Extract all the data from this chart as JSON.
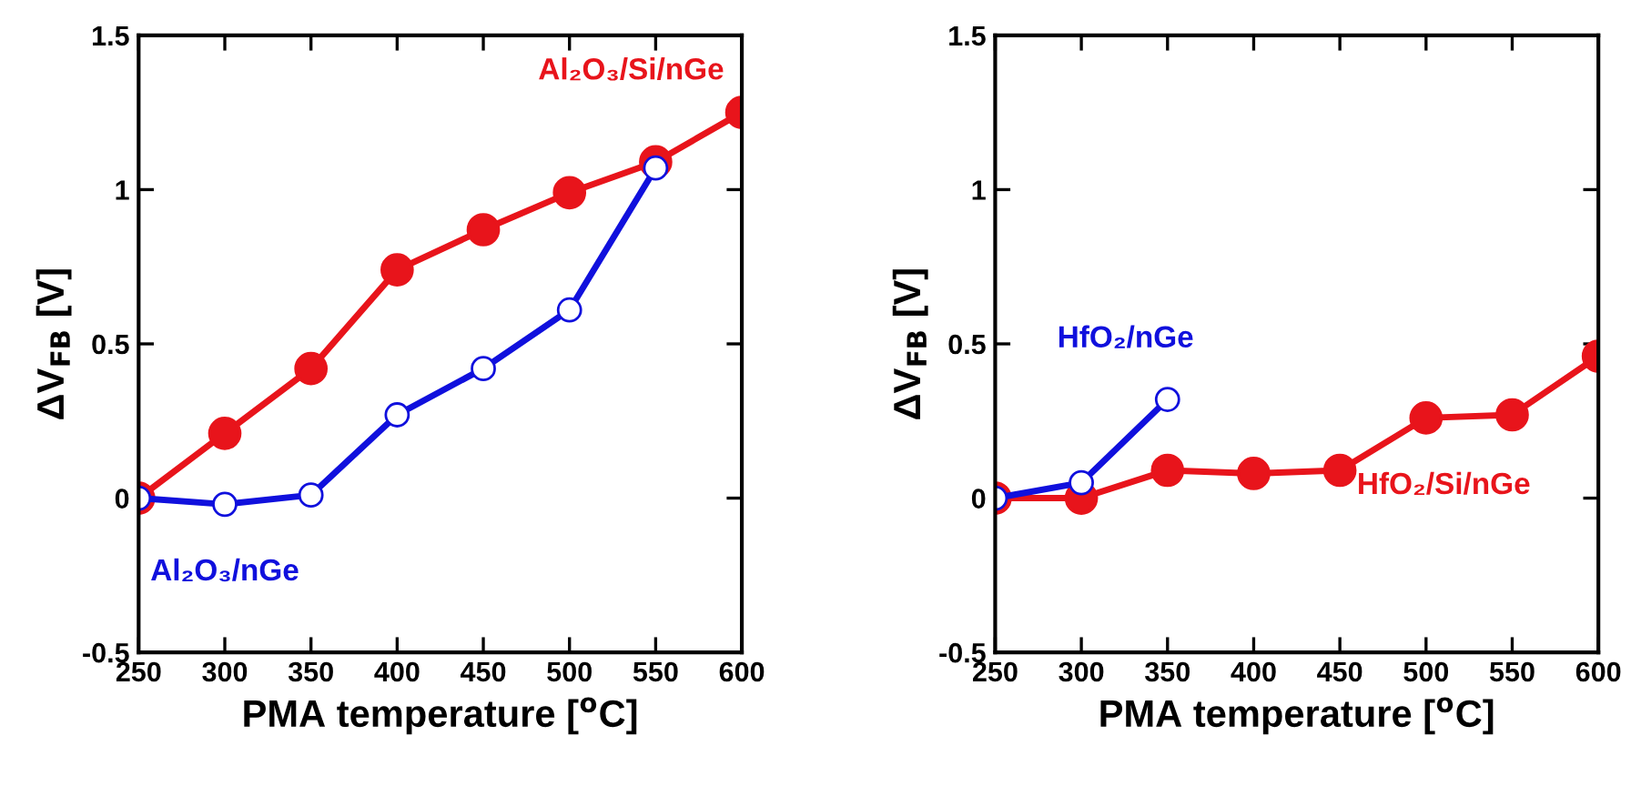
{
  "chart_data": [
    {
      "type": "line",
      "xlabel": "PMA temperature [$^{o}$C]",
      "ylabel": "ΔV$_{FB}$ [V]",
      "x": [
        250,
        300,
        350,
        400,
        450,
        500,
        550,
        600
      ],
      "xlim": [
        250,
        600
      ],
      "ylim": [
        -0.5,
        1.5
      ],
      "xticks": [
        250,
        300,
        350,
        400,
        450,
        500,
        550,
        600
      ],
      "yticks": [
        {
          "value": -0.5,
          "label": "-0.5"
        },
        0,
        0.5,
        1,
        1.5
      ],
      "marker": "circle",
      "grid": false,
      "legend": false,
      "series": [
        {
          "name": "Al₂O₃/Si/nGe",
          "color": "#e8141b",
          "values": [
            0,
            0.21,
            0.42,
            0.74,
            0.87,
            0.99,
            1.09,
            1.25
          ]
        },
        {
          "name": "Al₂O₃/nGe",
          "color": "#1010dd",
          "values": [
            0,
            -0.02,
            0.01,
            0.27,
            0.42,
            0.61,
            1.07,
            null
          ]
        }
      ]
    },
    {
      "type": "line",
      "xlabel": "PMA temperature [$^{o}$C]",
      "ylabel": "ΔV$_{FB}$ [V]",
      "x": [
        250,
        300,
        350,
        400,
        450,
        500,
        550,
        600
      ],
      "xlim": [
        250,
        600
      ],
      "ylim": [
        -0.5,
        1.5
      ],
      "xticks": [
        250,
        300,
        350,
        400,
        450,
        500,
        550,
        600
      ],
      "yticks": [
        {
          "value": -0.5,
          "label": "-0.5"
        },
        0,
        0.5,
        1,
        1.5
      ],
      "marker": "circle",
      "grid": false,
      "legend": false,
      "series": [
        {
          "name": "HfO₂/Si/nGe",
          "color": "#e8141b",
          "values": [
            0,
            0,
            0.09,
            0.08,
            0.09,
            0.26,
            0.27,
            0.46
          ]
        },
        {
          "name": "HfO₂/nGe",
          "color": "#1010dd",
          "values": [
            0,
            0.05,
            0.32,
            null,
            null,
            null,
            null,
            null
          ]
        }
      ]
    }
  ]
}
